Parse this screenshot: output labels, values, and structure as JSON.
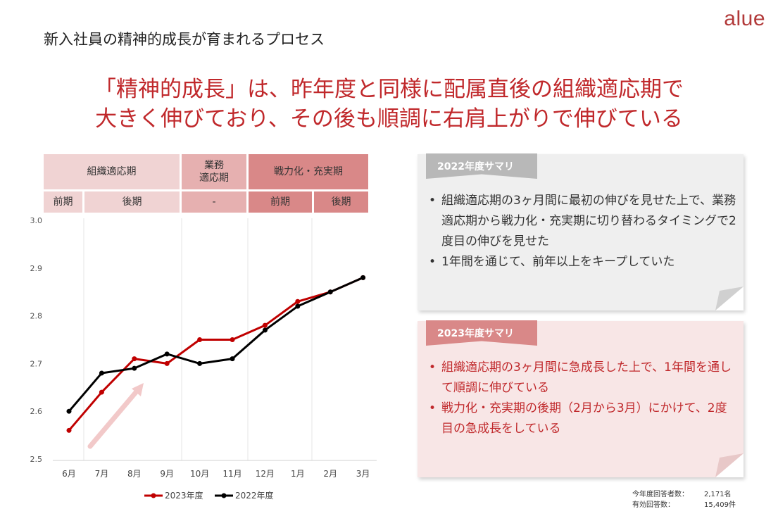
{
  "logo": "alue",
  "page_title": "新入社員の精神的成長が育まれるプロセス",
  "headline": [
    "「精神的成長」は、昨年度と同様に配属直後の組織適応期で",
    "大きく伸びており、その後も順調に右肩上がりで伸びている"
  ],
  "phases": {
    "top": [
      {
        "label": "組織適応期"
      },
      {
        "label": "業務\n適応期"
      },
      {
        "label": "戦力化・充実期"
      }
    ],
    "sub": [
      {
        "label": "前期"
      },
      {
        "label": "後期"
      },
      {
        "label": "-"
      },
      {
        "label": "前期"
      },
      {
        "label": "後期"
      }
    ]
  },
  "chart_data": {
    "type": "line",
    "categories": [
      "6月",
      "7月",
      "8月",
      "9月",
      "10月",
      "11月",
      "12月",
      "1月",
      "2月",
      "3月"
    ],
    "series": [
      {
        "name": "2023年度",
        "color": "#c00000",
        "values": [
          2.56,
          2.64,
          2.71,
          2.7,
          2.75,
          2.75,
          2.78,
          2.83,
          2.85,
          2.88
        ]
      },
      {
        "name": "2022年度",
        "color": "#000000",
        "values": [
          2.6,
          2.68,
          2.69,
          2.72,
          2.7,
          2.71,
          2.77,
          2.82,
          2.85,
          2.88
        ]
      }
    ],
    "y_ticks": [
      "3.0",
      "2.9",
      "2.8",
      "2.7",
      "2.6",
      "2.5"
    ],
    "ylim": [
      2.5,
      3.0
    ],
    "title": "",
    "xlabel": "",
    "ylabel": ""
  },
  "summary_2022": {
    "tag": "2022年度サマリ",
    "bullets": [
      "組織適応期の3ヶ月間に最初の伸びを見せた上で、業務適応期から戦力化・充実期に切り替わるタイミングで2度目の伸びを見せた",
      "1年間を通じて、前年以上をキープしていた"
    ]
  },
  "summary_2023": {
    "tag": "2023年度サマリ",
    "bullets": [
      "組織適応期の3ヶ月間に急成長した上で、1年間を通して順調に伸びている",
      "戦力化・充実期の後期（2月から3月）にかけて、2度目の急成長をしている"
    ]
  },
  "footnote": {
    "respondents_label": "今年度回答者数：",
    "respondents_value": "2,171名",
    "valid_label": "有効回答数：",
    "valid_value": "15,409件"
  },
  "colors": {
    "accent": "#c0282b",
    "series_2023": "#c00000",
    "series_2022": "#000000",
    "tag_2022": "#b8b8b8",
    "tag_2023": "#d98888",
    "card_2022": "#efefef",
    "card_2023": "#f8e6e6"
  }
}
